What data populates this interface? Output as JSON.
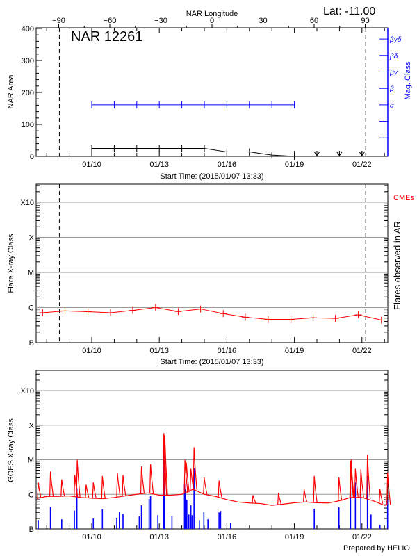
{
  "header": {
    "lat_label": "Lat: -11.00",
    "region_label": "NAR 12261",
    "top_axis_label": "NAR Longitude"
  },
  "footer": "Prepared by HELIO",
  "colors": {
    "area": "#000000",
    "mag_class": "#0000ff",
    "flares": "#ff0000",
    "goes_long": "#ff0000",
    "goes_short": "#0000ff",
    "grid": "#999999"
  },
  "chart_data": [
    {
      "type": "line",
      "xlabel": "Start Time: (2015/01/07 13:33)",
      "ylabel": "NAR Area",
      "y2label": "Mag. Class",
      "xlim": [
        "2015-01-07T13:33",
        "2015-01-23T03:30"
      ],
      "ylim": [
        0,
        400
      ],
      "yticks": [
        0,
        100,
        200,
        300,
        400
      ],
      "xticks": [
        {
          "date": "2015-01-10T00:00",
          "label": "01/10"
        },
        {
          "date": "2015-01-13T00:00",
          "label": "01/13"
        },
        {
          "date": "2015-01-16T00:00",
          "label": "01/16"
        },
        {
          "date": "2015-01-19T00:00",
          "label": "01/19"
        },
        {
          "date": "2015-01-22T00:00",
          "label": "01/22"
        }
      ],
      "longitude_ticks": [
        -90,
        -60,
        -30,
        0,
        30,
        60,
        90
      ],
      "limb_lines": [
        "2015-01-08T13:30",
        "2015-01-22T04:00"
      ],
      "area_series": [
        [
          "2015-01-10T00:00",
          25
        ],
        [
          "2015-01-11T00:00",
          25
        ],
        [
          "2015-01-12T00:00",
          25
        ],
        [
          "2015-01-13T00:00",
          25
        ],
        [
          "2015-01-14T00:00",
          25
        ],
        [
          "2015-01-15T00:00",
          25
        ],
        [
          "2015-01-16T00:00",
          14
        ],
        [
          "2015-01-17T00:00",
          14
        ],
        [
          "2015-01-18T00:00",
          4
        ],
        [
          "2015-01-19T00:00",
          0
        ]
      ],
      "off_disk_markers": [
        "2015-01-20T00:00",
        "2015-01-21T00:00",
        "2015-01-22T00:00"
      ],
      "mag_class_categories": [
        "α",
        "β",
        "βγ",
        "βδ",
        "βγδ"
      ],
      "mag_class_series": [
        [
          "2015-01-10T00:00",
          "α"
        ],
        [
          "2015-01-11T00:00",
          "α"
        ],
        [
          "2015-01-12T00:00",
          "α"
        ],
        [
          "2015-01-13T00:00",
          "α"
        ],
        [
          "2015-01-14T00:00",
          "α"
        ],
        [
          "2015-01-15T00:00",
          "α"
        ],
        [
          "2015-01-16T00:00",
          "α"
        ],
        [
          "2015-01-17T00:00",
          "α"
        ],
        [
          "2015-01-18T00:00",
          "α"
        ],
        [
          "2015-01-19T00:00",
          "α"
        ]
      ]
    },
    {
      "type": "line",
      "xlabel": "Start Time: (2015/01/07 13:33)",
      "ylabel": "Flare X-ray Class",
      "y2label": "Flares observed in AR",
      "legend": "CMEs",
      "yscale": "log",
      "ylim": [
        "B1.0",
        "X32"
      ],
      "yticks": [
        "B",
        "C",
        "M",
        "X",
        "X10"
      ],
      "grid": true,
      "limb_lines": [
        "2015-01-08T13:30",
        "2015-01-22T04:00"
      ],
      "series": [
        [
          "2015-01-07T19:40",
          "B7.1"
        ],
        [
          "2015-01-08T19:30",
          "B8.0"
        ],
        [
          "2015-01-09T20:00",
          "B7.6"
        ],
        [
          "2015-01-10T20:00",
          "B7.1"
        ],
        [
          "2015-01-11T19:40",
          "B8.3"
        ],
        [
          "2015-01-12T20:00",
          "C1.0"
        ],
        [
          "2015-01-13T20:10",
          "B7.7"
        ],
        [
          "2015-01-14T20:00",
          "B9.1"
        ],
        [
          "2015-01-15T20:10",
          "B6.7"
        ],
        [
          "2015-01-16T19:40",
          "B5.3"
        ],
        [
          "2015-01-17T20:00",
          "B4.6"
        ],
        [
          "2015-01-18T20:20",
          "B4.6"
        ],
        [
          "2015-01-19T20:00",
          "B5.1"
        ],
        [
          "2015-01-20T19:40",
          "B4.9"
        ],
        [
          "2015-01-21T20:10",
          "B6.2"
        ],
        [
          "2015-01-22T20:40",
          "B4.4"
        ]
      ]
    },
    {
      "type": "line",
      "ylabel": "GOES X-ray Class",
      "yscale": "log",
      "ylim": [
        "B1.0",
        "X32"
      ],
      "yticks": [
        "B",
        "C",
        "M",
        "X",
        "X10"
      ],
      "grid": true,
      "long_channel_baseline": [
        [
          "2015-01-07T13:33",
          "B7.5"
        ],
        [
          "2015-01-08T00:00",
          "B8.7"
        ],
        [
          "2015-01-08T12:00",
          "B8.7"
        ],
        [
          "2015-01-09T00:00",
          "B9.0"
        ],
        [
          "2015-01-09T12:00",
          "B8.1"
        ],
        [
          "2015-01-10T00:00",
          "B7.7"
        ],
        [
          "2015-01-10T12:00",
          "B7.5"
        ],
        [
          "2015-01-11T00:00",
          "B8.1"
        ],
        [
          "2015-01-11T12:00",
          "B9.0"
        ],
        [
          "2015-01-12T00:00",
          "C1.0"
        ],
        [
          "2015-01-12T12:00",
          "C1.1"
        ],
        [
          "2015-01-13T00:00",
          "B9.4"
        ],
        [
          "2015-01-13T12:00",
          "B9.4"
        ],
        [
          "2015-01-14T00:00",
          "C1.0"
        ],
        [
          "2015-01-14T12:00",
          "C1.4"
        ],
        [
          "2015-01-15T00:00",
          "C1.0"
        ],
        [
          "2015-01-15T12:00",
          "B8.7"
        ],
        [
          "2015-01-16T00:00",
          "B7.0"
        ],
        [
          "2015-01-16T12:00",
          "B6.0"
        ],
        [
          "2015-01-17T00:00",
          "B5.6"
        ],
        [
          "2015-01-17T12:00",
          "B5.4"
        ],
        [
          "2015-01-18T00:00",
          "B4.8"
        ],
        [
          "2015-01-18T12:00",
          "B5.2"
        ],
        [
          "2015-01-19T00:00",
          "B5.7"
        ],
        [
          "2015-01-19T12:00",
          "B6.0"
        ],
        [
          "2015-01-20T00:00",
          "B5.7"
        ],
        [
          "2015-01-20T12:00",
          "B5.6"
        ],
        [
          "2015-01-21T00:00",
          "B6.5"
        ],
        [
          "2015-01-21T12:00",
          "B8.1"
        ],
        [
          "2015-01-22T00:00",
          "B8.1"
        ],
        [
          "2015-01-22T12:00",
          "B6.5"
        ],
        [
          "2015-01-23T00:00",
          "B4.8"
        ],
        [
          "2015-01-23T03:30",
          "B5.0"
        ]
      ],
      "long_channel_peaks": [
        [
          "2015-01-07T15:00",
          "C2.2"
        ],
        [
          "2015-01-08T04:00",
          "C4.6"
        ],
        [
          "2015-01-08T16:00",
          "C2.7"
        ],
        [
          "2015-01-09T06:00",
          "C3.6"
        ],
        [
          "2015-01-09T08:30",
          "M1.0"
        ],
        [
          "2015-01-09T18:00",
          "C1.9"
        ],
        [
          "2015-01-10T01:40",
          "C2.2"
        ],
        [
          "2015-01-10T11:20",
          "C3.4"
        ],
        [
          "2015-01-11T03:20",
          "C4.2"
        ],
        [
          "2015-01-11T09:20",
          "C3.6"
        ],
        [
          "2015-01-12T05:00",
          "C6.4"
        ],
        [
          "2015-01-12T14:40",
          "C7.4"
        ],
        [
          "2015-01-13T04:50",
          "M5.9"
        ],
        [
          "2015-01-13T05:50",
          "M5.1"
        ],
        [
          "2015-01-14T03:20",
          "M1.0"
        ],
        [
          "2015-01-14T04:50",
          "C8.3"
        ],
        [
          "2015-01-14T09:40",
          "C5.5"
        ],
        [
          "2015-01-14T13:00",
          "M2.3"
        ],
        [
          "2015-01-14T23:50",
          "C3.1"
        ],
        [
          "2015-01-15T15:40",
          "C2.5"
        ],
        [
          "2015-01-17T03:50",
          "B9.4"
        ],
        [
          "2015-01-18T07:00",
          "C1.1"
        ],
        [
          "2015-01-19T10:20",
          "C1.4"
        ],
        [
          "2015-01-19T21:10",
          "C3.4"
        ],
        [
          "2015-01-20T23:30",
          "C3.1"
        ],
        [
          "2015-01-21T11:50",
          "C9.0"
        ],
        [
          "2015-01-21T12:30",
          "M1.0"
        ],
        [
          "2015-01-21T17:00",
          "C5.5"
        ],
        [
          "2015-01-21T22:50",
          "C5.3"
        ],
        [
          "2015-01-22T05:50",
          "M1.4"
        ],
        [
          "2015-01-22T19:10",
          "C1.4"
        ],
        [
          "2015-01-23T03:20",
          "C4.4"
        ]
      ],
      "short_channel_peaks": [
        [
          "2015-01-07T15:00",
          "B1.8"
        ],
        [
          "2015-01-08T04:00",
          "B4.3"
        ],
        [
          "2015-01-08T16:00",
          "B1.9"
        ],
        [
          "2015-01-09T05:30",
          "B3.4"
        ],
        [
          "2015-01-09T08:10",
          "C1.5"
        ],
        [
          "2015-01-10T01:40",
          "B2.0"
        ],
        [
          "2015-01-10T11:20",
          "B3.7"
        ],
        [
          "2015-01-11T02:40",
          "B2.1"
        ],
        [
          "2015-01-11T05:30",
          "B3.1"
        ],
        [
          "2015-01-11T09:20",
          "B2.7"
        ],
        [
          "2015-01-12T02:40",
          "B2.3"
        ],
        [
          "2015-01-12T05:00",
          "B4.8"
        ],
        [
          "2015-01-12T13:10",
          "B7.3"
        ],
        [
          "2015-01-12T14:40",
          "B9.0"
        ],
        [
          "2015-01-12T22:30",
          "B2.5"
        ],
        [
          "2015-01-13T04:50",
          "M1.5"
        ],
        [
          "2015-01-13T05:50",
          "C8.3"
        ],
        [
          "2015-01-13T13:30",
          "B2.4"
        ],
        [
          "2015-01-14T02:50",
          "C2.0"
        ],
        [
          "2015-01-14T03:50",
          "C1.4"
        ],
        [
          "2015-01-14T05:20",
          "B7.0"
        ],
        [
          "2015-01-14T07:30",
          "B2.6"
        ],
        [
          "2015-01-14T09:40",
          "B4.8"
        ],
        [
          "2015-01-14T11:00",
          "B2.5"
        ],
        [
          "2015-01-14T13:00",
          "C5.7"
        ],
        [
          "2015-01-14T18:40",
          "B1.8"
        ],
        [
          "2015-01-14T23:30",
          "B3.1"
        ],
        [
          "2015-01-15T03:50",
          "B1.9"
        ],
        [
          "2015-01-15T15:40",
          "B3.0"
        ],
        [
          "2015-01-15T17:20",
          "B3.3"
        ],
        [
          "2015-01-16T04:00",
          "B1.5"
        ],
        [
          "2015-01-19T21:10",
          "B3.8"
        ],
        [
          "2015-01-20T23:30",
          "B4.2"
        ],
        [
          "2015-01-21T11:50",
          "C2.2"
        ],
        [
          "2015-01-21T17:00",
          "C2.2"
        ],
        [
          "2015-01-21T22:50",
          "C1.0"
        ],
        [
          "2015-01-22T05:50",
          "C3.4"
        ],
        [
          "2015-01-22T09:40",
          "B2.6"
        ],
        [
          "2015-01-22T19:10",
          "B1.3"
        ],
        [
          "2015-01-23T03:20",
          "B7.0"
        ]
      ]
    }
  ]
}
